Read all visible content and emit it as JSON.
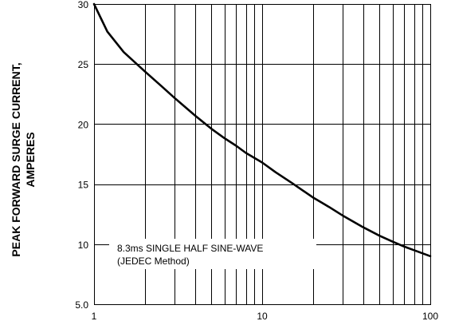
{
  "chart_data": {
    "type": "line",
    "xscale": "log",
    "yscale": "linear",
    "xlim": [
      1,
      100
    ],
    "ylim": [
      5,
      30
    ],
    "grid": true,
    "ylabel_lines": [
      "PEAK  FORWARD SURGE CURRENT,",
      "AMPERES"
    ],
    "xlabel": "",
    "title": "",
    "x_ticks": [
      {
        "value": 1,
        "label": "1"
      },
      {
        "value": 10,
        "label": "10"
      },
      {
        "value": 100,
        "label": "100"
      }
    ],
    "y_ticks": [
      {
        "value": 5,
        "label": "5.0"
      },
      {
        "value": 10,
        "label": "10"
      },
      {
        "value": 15,
        "label": "15"
      },
      {
        "value": 20,
        "label": "20"
      },
      {
        "value": 25,
        "label": "25"
      },
      {
        "value": 30,
        "label": "30"
      }
    ],
    "annotation_lines": [
      "8.3ms SINGLE HALF SINE-WAVE",
      "(JEDEC Method)"
    ],
    "series": [
      {
        "x": [
          1,
          1.2,
          1.5,
          2,
          2.5,
          3,
          4,
          5,
          6,
          7,
          8,
          10,
          12,
          15,
          20,
          25,
          30,
          40,
          50,
          60,
          70,
          80,
          100
        ],
        "y": [
          30,
          27.7,
          26,
          24.4,
          23.2,
          22.2,
          20.7,
          19.6,
          18.8,
          18.2,
          17.6,
          16.8,
          16.0,
          15.1,
          13.9,
          13.1,
          12.4,
          11.4,
          10.7,
          10.2,
          9.8,
          9.5,
          9.0
        ]
      }
    ],
    "colors": {
      "line": "#000000",
      "grid": "#000000",
      "background": "#ffffff"
    }
  }
}
